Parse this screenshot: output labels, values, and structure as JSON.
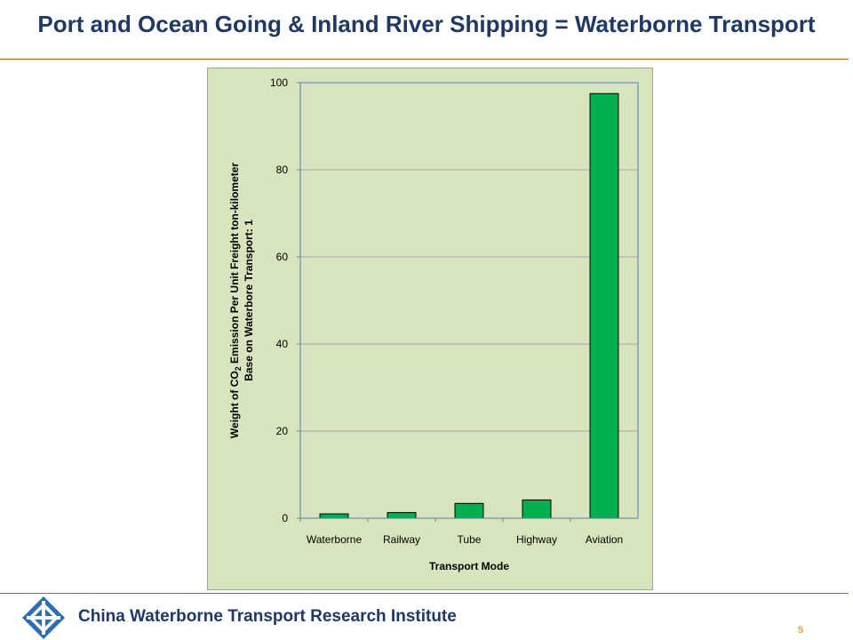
{
  "slide": {
    "title": "Port and Ocean Going & Inland River Shipping = Waterborne Transport",
    "footer": "China Waterborne Transport Research Institute",
    "page_number": "5"
  },
  "colors": {
    "title": "#1f3864",
    "rule": "#c55a11",
    "panel": "#d7e4bd",
    "bar": "#00b050",
    "plot_border": "#4f81bd",
    "page_number": "#f0a030"
  },
  "chart_data": {
    "type": "bar",
    "categories": [
      "Waterborne",
      "Railway",
      "Tube",
      "Highway",
      "Aviation"
    ],
    "values": [
      1,
      1.3,
      3.4,
      4.2,
      97.5
    ],
    "xlabel": "Transport Mode",
    "ylabel_line1": "Weight of CO",
    "ylabel_sub": "2",
    "ylabel_line1_rest": " Emission Per Unit Freight ton-kilometer",
    "ylabel_line2": "Base on Waterbore Transport: 1",
    "ylim": [
      0,
      100
    ],
    "yticks": [
      "0",
      "20",
      "40",
      "60",
      "80",
      "100"
    ],
    "grid": true,
    "legend": "none"
  }
}
